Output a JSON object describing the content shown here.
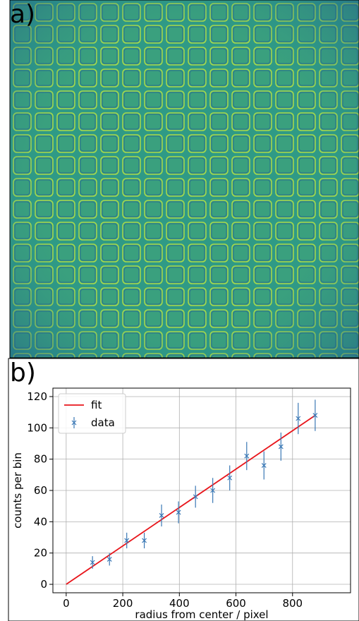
{
  "panel_labels": [
    "a)",
    "b)"
  ],
  "chart_data": {
    "type": "errorbar-fit",
    "xlabel": "radius from center / pixel",
    "ylabel": "counts per bin",
    "xlim": [
      -47,
      1005
    ],
    "ylim": [
      -5.4,
      125.4
    ],
    "xticks": [
      0,
      200,
      400,
      600,
      800
    ],
    "yticks": [
      0,
      20,
      40,
      60,
      80,
      100,
      120
    ],
    "grid": true,
    "legend": "upper left",
    "series": [
      {
        "name": "fit",
        "color": "#e8151b",
        "x": [
          0,
          880
        ],
        "values": [
          0,
          108
        ]
      },
      {
        "name": "data",
        "color": "#3a78b5",
        "x": [
          93,
          153,
          214,
          276,
          337,
          397,
          457,
          518,
          578,
          638,
          699,
          759,
          820,
          880
        ],
        "values": [
          14,
          16,
          28,
          28,
          44,
          46,
          56,
          60,
          68,
          82,
          76,
          88,
          106,
          108
        ],
        "errors": [
          4,
          4,
          5,
          5,
          7,
          7,
          7,
          8,
          8,
          9,
          9,
          9,
          10,
          10
        ]
      }
    ]
  }
}
